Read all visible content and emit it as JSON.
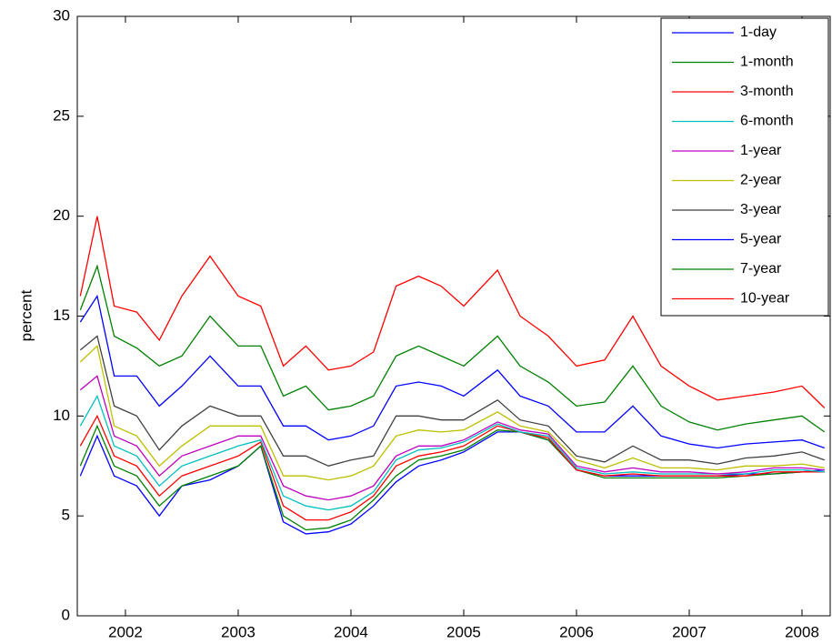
{
  "chart_data": {
    "type": "line",
    "ylabel": "percent",
    "xlim": [
      2001.573,
      2008.25
    ],
    "ylim": [
      0,
      30
    ],
    "xticks": [
      2002,
      2003,
      2004,
      2005,
      2006,
      2007,
      2008
    ],
    "yticks": [
      0,
      5,
      10,
      15,
      20,
      25,
      30
    ],
    "grid": false,
    "legend": "top-right",
    "x": [
      2001.6,
      2001.75,
      2001.9,
      2002.1,
      2002.3,
      2002.5,
      2002.75,
      2003.0,
      2003.2,
      2003.4,
      2003.6,
      2003.8,
      2004.0,
      2004.2,
      2004.4,
      2004.6,
      2004.8,
      2005.0,
      2005.3,
      2005.5,
      2005.75,
      2006.0,
      2006.25,
      2006.5,
      2006.75,
      2007.0,
      2007.25,
      2007.5,
      2007.75,
      2008.0,
      2008.2
    ],
    "series": [
      {
        "name": "1-day",
        "color": "#0000ff",
        "values": [
          7,
          9,
          7,
          6.5,
          5,
          6.5,
          6.8,
          7.5,
          8.5,
          4.7,
          4.1,
          4.2,
          4.6,
          5.5,
          6.7,
          7.5,
          7.8,
          8.2,
          9.2,
          9.2,
          8.8,
          7.3,
          7,
          7,
          7,
          7,
          7,
          7.1,
          7.1,
          7.2,
          7.3
        ]
      },
      {
        "name": "1-month",
        "color": "#008000",
        "values": [
          7.5,
          9.5,
          7.5,
          7,
          5.5,
          6.5,
          7,
          7.5,
          8.5,
          5,
          4.3,
          4.4,
          4.8,
          5.8,
          7,
          7.8,
          8,
          8.3,
          9.3,
          9.2,
          8.8,
          7.3,
          6.9,
          6.9,
          6.9,
          6.9,
          6.9,
          7,
          7.1,
          7.2,
          7.2
        ]
      },
      {
        "name": "3-month",
        "color": "#ff0000",
        "values": [
          8.5,
          10,
          8,
          7.5,
          6,
          7,
          7.5,
          8,
          8.7,
          5.5,
          4.8,
          4.8,
          5.2,
          6,
          7.5,
          8,
          8.2,
          8.5,
          9.5,
          9.2,
          8.9,
          7.3,
          7,
          7.1,
          7,
          7,
          7,
          7,
          7.2,
          7.2,
          7.2
        ]
      },
      {
        "name": "6-month",
        "color": "#00bfbf",
        "values": [
          9.5,
          11,
          8.5,
          8,
          6.5,
          7.5,
          8,
          8.5,
          8.8,
          6,
          5.5,
          5.3,
          5.5,
          6.2,
          7.8,
          8.3,
          8.4,
          8.7,
          9.6,
          9.2,
          9,
          7.4,
          7.1,
          7.2,
          7.1,
          7.1,
          7.1,
          7.1,
          7.3,
          7.3,
          7.2
        ]
      },
      {
        "name": "1-year",
        "color": "#bf00bf",
        "values": [
          11.3,
          12,
          9,
          8.5,
          7,
          8,
          8.5,
          9,
          9,
          6.5,
          6,
          5.8,
          6,
          6.5,
          8,
          8.5,
          8.5,
          8.8,
          9.7,
          9.3,
          9.1,
          7.5,
          7.2,
          7.4,
          7.2,
          7.2,
          7.1,
          7.2,
          7.4,
          7.4,
          7.3
        ]
      },
      {
        "name": "2-year",
        "color": "#bfbf00",
        "values": [
          12.7,
          13.5,
          9.5,
          9,
          7.5,
          8.5,
          9.5,
          9.5,
          9.5,
          7,
          7,
          6.8,
          7,
          7.5,
          9,
          9.3,
          9.2,
          9.3,
          10.2,
          9.5,
          9.2,
          7.8,
          7.4,
          7.9,
          7.4,
          7.4,
          7.3,
          7.5,
          7.5,
          7.6,
          7.4
        ]
      },
      {
        "name": "3-year",
        "color": "#404040",
        "values": [
          13.3,
          14,
          10.5,
          10,
          8.3,
          9.5,
          10.5,
          10,
          10,
          8,
          8,
          7.5,
          7.8,
          8,
          10,
          10,
          9.8,
          9.8,
          10.8,
          9.8,
          9.5,
          8,
          7.7,
          8.5,
          7.8,
          7.8,
          7.6,
          7.9,
          8,
          8.2,
          7.8
        ]
      },
      {
        "name": "5-year",
        "color": "#0000ff",
        "values": [
          14.7,
          16,
          12,
          12,
          10.5,
          11.5,
          13,
          11.5,
          11.5,
          9.5,
          9.5,
          8.8,
          9,
          9.5,
          11.5,
          11.7,
          11.5,
          11,
          12.3,
          11,
          10.5,
          9.2,
          9.2,
          10.5,
          9,
          8.6,
          8.4,
          8.6,
          8.7,
          8.8,
          8.4
        ]
      },
      {
        "name": "7-year",
        "color": "#008000",
        "values": [
          15.3,
          17.5,
          14,
          13.4,
          12.5,
          13,
          15,
          13.5,
          13.5,
          11,
          11.5,
          10.3,
          10.5,
          11,
          13,
          13.5,
          13,
          12.5,
          14,
          12.5,
          11.7,
          10.5,
          10.7,
          12.5,
          10.5,
          9.7,
          9.3,
          9.6,
          9.8,
          10,
          9.2
        ]
      },
      {
        "name": "10-year",
        "color": "#ff0000",
        "values": [
          16,
          20,
          15.5,
          15.2,
          13.8,
          16,
          18,
          16,
          15.5,
          12.5,
          13.5,
          12.3,
          12.5,
          13.2,
          16.5,
          17,
          16.5,
          15.5,
          17.3,
          15,
          14,
          12.5,
          12.8,
          15,
          12.5,
          11.5,
          10.8,
          11,
          11.2,
          11.5,
          10.4
        ]
      }
    ]
  }
}
